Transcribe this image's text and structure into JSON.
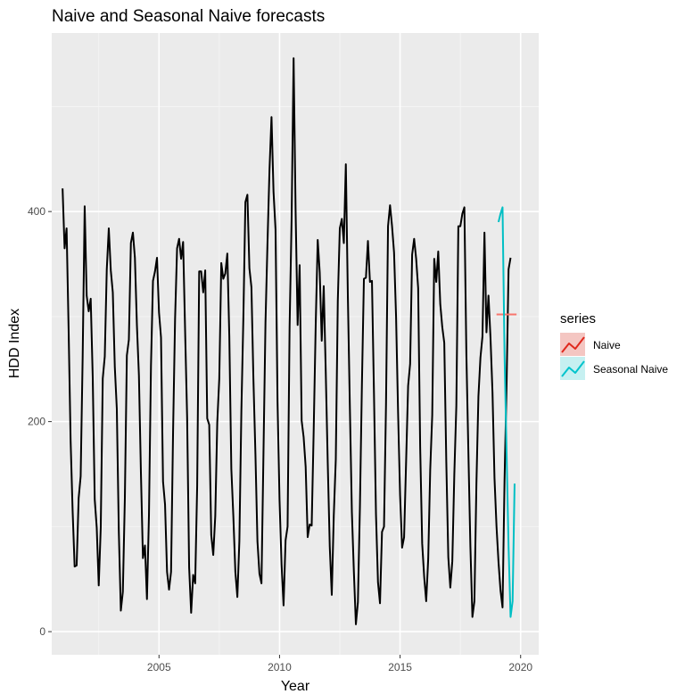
{
  "chart_data": {
    "type": "line",
    "title": "Naive and Seasonal Naive forecasts",
    "xlabel": "Year",
    "ylabel": "HDD Index",
    "xlim": [
      2000.55,
      2020.75
    ],
    "ylim": [
      -22,
      570
    ],
    "x_ticks": [
      2005,
      2010,
      2015,
      2020
    ],
    "x_tick_labels": [
      "2005",
      "2010",
      "2015",
      "2020"
    ],
    "y_ticks": [
      0,
      200,
      400
    ],
    "y_tick_labels": [
      "0",
      "200",
      "400"
    ],
    "y_minor_ticks": [
      100,
      300,
      500
    ],
    "grid": true,
    "legend": {
      "title": "series",
      "position": "right"
    },
    "series": [
      {
        "color": "#000000",
        "role": "history",
        "start": 2001.0,
        "step": 0.083333,
        "values": [
          422,
          365,
          384,
          288,
          182,
          115,
          62,
          63,
          127,
          148,
          262,
          405,
          320,
          305,
          317,
          243,
          126,
          99,
          44,
          99,
          241,
          262,
          345,
          384,
          344,
          323,
          252,
          212,
          95,
          20,
          38,
          127,
          263,
          278,
          370,
          380,
          356,
          292,
          244,
          151,
          70,
          82,
          31,
          111,
          253,
          334,
          343,
          356,
          304,
          280,
          143,
          121,
          57,
          40,
          57,
          190,
          298,
          365,
          374,
          355,
          371,
          286,
          204,
          61,
          18,
          54,
          46,
          139,
          343,
          343,
          323,
          344,
          203,
          197,
          92,
          73,
          110,
          199,
          241,
          351,
          336,
          341,
          360,
          281,
          155,
          110,
          57,
          33,
          86,
          210,
          300,
          409,
          416,
          346,
          328,
          240,
          169,
          86,
          55,
          46,
          170,
          294,
          370,
          440,
          490,
          419,
          383,
          219,
          125,
          64,
          25,
          87,
          100,
          290,
          392,
          546,
          400,
          292,
          349,
          201,
          185,
          157,
          90,
          102,
          101,
          192,
          292,
          373,
          342,
          277,
          329,
          247,
          160,
          81,
          35,
          111,
          164,
          315,
          384,
          393,
          370,
          445,
          320,
          214,
          114,
          57,
          7,
          28,
          118,
          235,
          336,
          337,
          372,
          333,
          334,
          227,
          112,
          47,
          27,
          95,
          100,
          217,
          386,
          406,
          386,
          361,
          300,
          209,
          130,
          80,
          90,
          162,
          234,
          255,
          359,
          374,
          355,
          327,
          176,
          84,
          52,
          29,
          69,
          154,
          206,
          355,
          333,
          362,
          312,
          290,
          275,
          162,
          71,
          42,
          67,
          150,
          215,
          386,
          386,
          398,
          404,
          264,
          171,
          81,
          14,
          29,
          141,
          224,
          261,
          281,
          380,
          285,
          320,
          280,
          228,
          146,
          100,
          66,
          39,
          23,
          145,
          234,
          345,
          356
        ]
      },
      {
        "name": "Naive",
        "color": "#F8766D",
        "swatch_line": "#e0291e",
        "swatch_fill": "#f4c6c2",
        "segments": [
          {
            "x": [
              2019.0,
              2019.83
            ],
            "values": [
              302,
              302
            ]
          }
        ]
      },
      {
        "name": "Seasonal Naive",
        "color": "#00BFC4",
        "swatch_line": "#00c4cc",
        "swatch_fill": "#c6f0f1",
        "segments": [
          {
            "x": [
              2019.083,
              2019.167,
              2019.25,
              2019.333,
              2019.417,
              2019.5,
              2019.583,
              2019.667,
              2019.75
            ],
            "values": [
              390,
              398,
              404,
              264,
              171,
              81,
              14,
              29,
              141
            ]
          }
        ]
      }
    ]
  }
}
